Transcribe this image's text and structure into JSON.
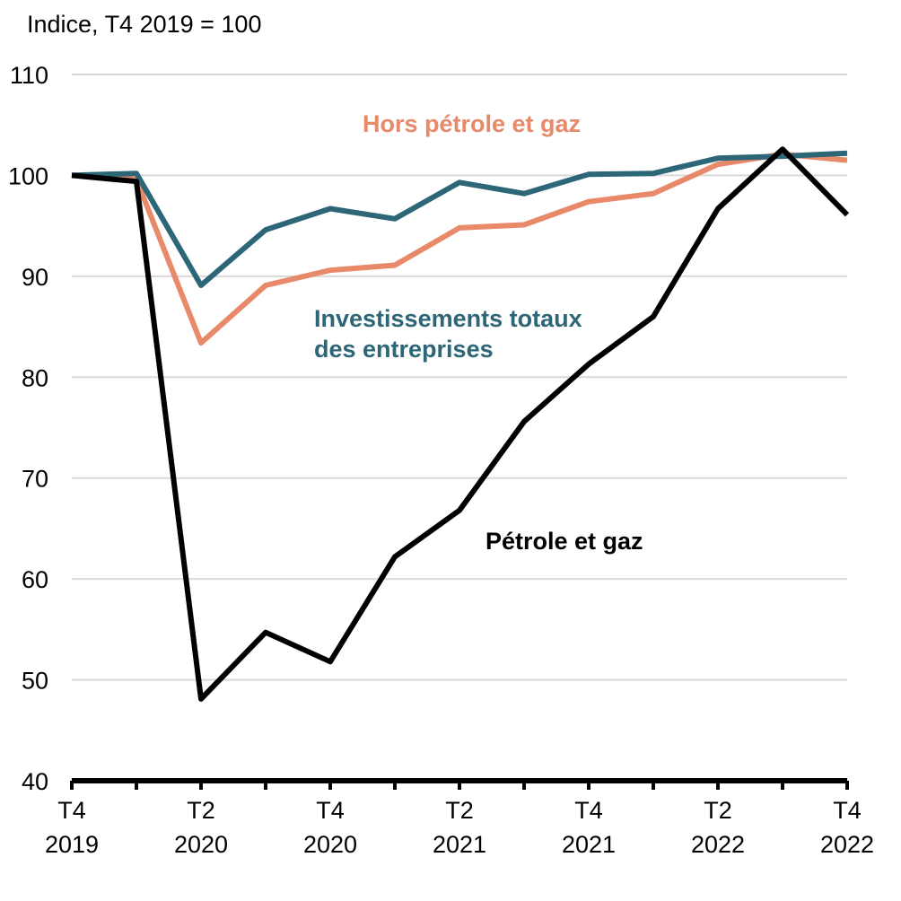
{
  "chart_data": {
    "type": "line",
    "unit_label": "Indice, T4 2019 = 100",
    "ylim": [
      40,
      110
    ],
    "yticks": [
      40,
      50,
      60,
      70,
      80,
      90,
      100,
      110
    ],
    "grid": true,
    "x_tick_labels": [
      {
        "quarter": "T4",
        "year": "2019",
        "index": 0
      },
      {
        "quarter": "T2",
        "year": "2020",
        "index": 2
      },
      {
        "quarter": "T4",
        "year": "2020",
        "index": 4
      },
      {
        "quarter": "T2",
        "year": "2021",
        "index": 6
      },
      {
        "quarter": "T4",
        "year": "2021",
        "index": 8
      },
      {
        "quarter": "T2",
        "year": "2022",
        "index": 10
      },
      {
        "quarter": "T4",
        "year": "2022",
        "index": 12
      }
    ],
    "x": [
      "T4 2019",
      "T1 2020",
      "T2 2020",
      "T3 2020",
      "T4 2020",
      "T1 2021",
      "T2 2021",
      "T3 2021",
      "T4 2021",
      "T1 2022",
      "T2 2022",
      "T3 2022",
      "T4 2022"
    ],
    "series": [
      {
        "name": "Hors pétrole et gaz",
        "color": "#e8896a",
        "values": [
          100,
          99.6,
          83.4,
          89.1,
          90.6,
          91.1,
          94.8,
          95.1,
          97.4,
          98.2,
          101.1,
          102.1,
          101.5
        ]
      },
      {
        "name": "Investissements totaux des entreprises",
        "label_lines": [
          "Investissements totaux",
          "des entreprises"
        ],
        "color": "#2c6677",
        "values": [
          100,
          100.2,
          89.1,
          94.6,
          96.7,
          95.7,
          99.3,
          98.2,
          100.1,
          100.2,
          101.7,
          101.9,
          102.2
        ]
      },
      {
        "name": "Pétrole et gaz",
        "color": "#000000",
        "values": [
          100,
          99.4,
          48.1,
          54.7,
          51.8,
          62.2,
          66.8,
          75.6,
          81.3,
          86.0,
          96.7,
          102.6,
          96.1
        ]
      }
    ]
  }
}
